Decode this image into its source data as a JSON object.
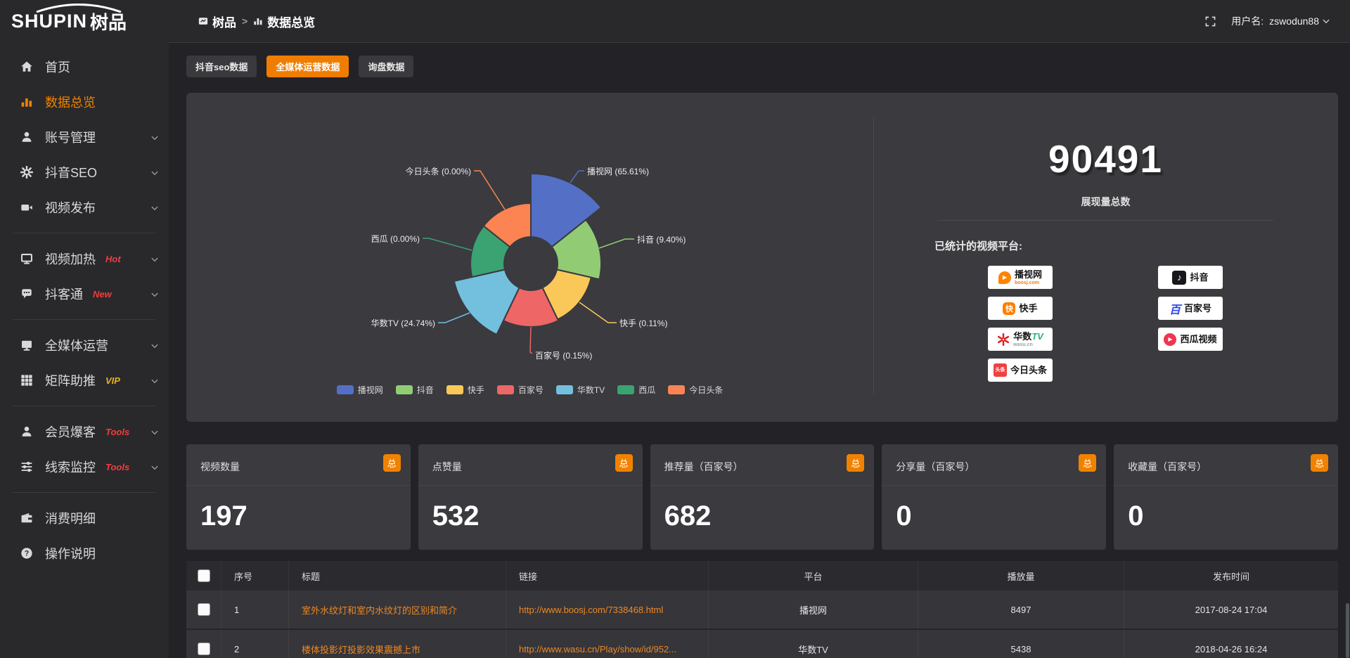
{
  "topbar": {
    "logo_main": "SHUPIN",
    "logo_cn": "树品",
    "breadcrumb": [
      {
        "key": "shupin",
        "icon": "site",
        "label": "树品"
      },
      {
        "key": "data-overview",
        "icon": "bars",
        "label": "数据总览"
      }
    ],
    "separator": ">",
    "username_label": "用户名:",
    "username": "zswodun88"
  },
  "sidebar": {
    "items": [
      {
        "key": "home",
        "icon": "home",
        "label": "首页"
      },
      {
        "key": "data-overview",
        "icon": "chart",
        "label": "数据总览",
        "active": true
      },
      {
        "key": "account-management",
        "icon": "user",
        "label": "账号管理",
        "chevron": true
      },
      {
        "key": "douyin-seo",
        "icon": "gear",
        "label": "抖音SEO",
        "chevron": true
      },
      {
        "key": "video-publish",
        "icon": "video",
        "label": "视频发布",
        "chevron": true
      },
      {
        "type": "divider"
      },
      {
        "key": "video-heating",
        "icon": "screen",
        "label": "视频加热",
        "badge": "Hot",
        "badge_color": "#f23c3c",
        "chevron": true
      },
      {
        "key": "douketong",
        "icon": "chat",
        "label": "抖客通",
        "badge": "New",
        "badge_color": "#f23c3c",
        "chevron": true
      },
      {
        "type": "divider"
      },
      {
        "key": "media-operation",
        "icon": "monitor",
        "label": "全媒体运营",
        "chevron": true
      },
      {
        "key": "matrix-boost",
        "icon": "grid",
        "label": "矩阵助推",
        "badge": "VIP",
        "badge_color": "#e8b21a",
        "chevron": true
      },
      {
        "type": "divider"
      },
      {
        "key": "member-baoke",
        "icon": "person",
        "label": "会员爆客",
        "badge": "Tools",
        "badge_color": "#f23c3c",
        "chevron": true
      },
      {
        "key": "clue-monitor",
        "icon": "sliders",
        "label": "线索监控",
        "badge": "Tools",
        "badge_color": "#f23c3c",
        "chevron": true
      },
      {
        "type": "divider"
      },
      {
        "key": "consume-detail",
        "icon": "wallet",
        "label": "消费明细"
      },
      {
        "key": "operation-guide",
        "icon": "help",
        "label": "操作说明"
      }
    ]
  },
  "tabs": [
    {
      "key": "douyin-seo-data",
      "label": "抖音seo数据",
      "active": false
    },
    {
      "key": "media-operation-data",
      "label": "全媒体运营数据",
      "active": true
    },
    {
      "key": "inquiry-data",
      "label": "询盘数据",
      "active": false
    }
  ],
  "chart_data": {
    "type": "pie",
    "subtype": "nightingale-rose-donut",
    "labels": [
      "播视网",
      "抖音",
      "快手",
      "百家号",
      "华数TV",
      "西瓜",
      "今日头条"
    ],
    "values_percent": [
      65.61,
      9.4,
      0.11,
      0.15,
      24.74,
      0.0,
      0.0
    ],
    "colors": [
      "#5470c6",
      "#91cc75",
      "#fac858",
      "#ee6666",
      "#73c0de",
      "#3ba272",
      "#fc8452"
    ],
    "label_format": "{name} ({value}%)",
    "legend_position": "bottom",
    "legend": [
      "播视网",
      "抖音",
      "快手",
      "百家号",
      "华数TV",
      "西瓜",
      "今日头条"
    ]
  },
  "summary": {
    "total_value": "90491",
    "total_label": "展现量总数",
    "platforms_label": "已统计的视频平台:",
    "platforms_left": [
      {
        "key": "boosj",
        "name": "播视网",
        "sub": "boosj.com",
        "sub_color": "#ff7a00"
      },
      {
        "key": "kuaishou",
        "name": "快手"
      },
      {
        "key": "wasu",
        "name": "华数",
        "name2": "TV",
        "sub": "wasu.cn",
        "sub_color": "#9aa0a6"
      },
      {
        "key": "toutiao",
        "name": "今日头条",
        "icon_text": "头条"
      }
    ],
    "platforms_right": [
      {
        "key": "douyin",
        "name": "抖音"
      },
      {
        "key": "baijiahao",
        "name": "百家号"
      },
      {
        "key": "xigua",
        "name": "西瓜视频"
      }
    ]
  },
  "stat_cards": [
    {
      "title": "视频数量",
      "badge": "总",
      "value": "197"
    },
    {
      "title": "点赞量",
      "badge": "总",
      "value": "532"
    },
    {
      "title": "推荐量（百家号）",
      "badge": "总",
      "value": "682"
    },
    {
      "title": "分享量（百家号）",
      "badge": "总",
      "value": "0"
    },
    {
      "title": "收藏量（百家号）",
      "badge": "总",
      "value": "0"
    }
  ],
  "table": {
    "headers": [
      "序号",
      "标题",
      "链接",
      "平台",
      "播放量",
      "发布时间"
    ],
    "rows": [
      {
        "no": "1",
        "title": "室外水纹灯和室内水纹灯的区别和简介",
        "link": "http://www.boosj.com/7338468.html",
        "platform": "播视网",
        "plays": "8497",
        "time": "2017-08-24 17:04"
      },
      {
        "no": "2",
        "title": "楼体投影灯投影效果震撼上市",
        "link": "http://www.wasu.cn/Play/show/id/952...",
        "platform": "华数TV",
        "plays": "5438",
        "time": "2018-04-26 16:24"
      }
    ]
  },
  "colors": {
    "accent": "#f07d00",
    "link": "#ef8822",
    "panel": "#3a3a3f",
    "sidebar": "#29292c",
    "background": "#232327"
  }
}
